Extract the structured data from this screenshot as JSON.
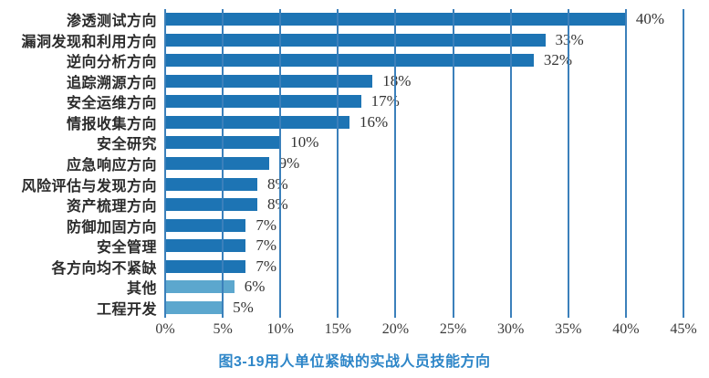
{
  "chart_data": {
    "type": "bar",
    "orientation": "horizontal",
    "title": "图3-19用人单位紧缺的实战人员技能方向",
    "categories": [
      "渗透测试方向",
      "漏洞发现和利用方向",
      "逆向分析方向",
      "追踪溯源方向",
      "安全运维方向",
      "情报收集方向",
      "安全研究",
      "应急响应方向",
      "风险评估与发现方向",
      "资产梳理方向",
      "防御加固方向",
      "安全管理",
      "各方向均不紧缺",
      "其他",
      "工程开发"
    ],
    "values": [
      40,
      33,
      32,
      18,
      17,
      16,
      10,
      9,
      8,
      8,
      7,
      7,
      7,
      6,
      5
    ],
    "value_labels": [
      "40%",
      "33%",
      "32%",
      "18%",
      "17%",
      "16%",
      "10%",
      "9%",
      "8%",
      "8%",
      "7%",
      "7%",
      "7%",
      "6%",
      "5%"
    ],
    "xlabel": "",
    "ylabel": "",
    "xlim": [
      0,
      45
    ],
    "xticks": [
      0,
      5,
      10,
      15,
      20,
      25,
      30,
      35,
      40,
      45
    ],
    "xtick_labels": [
      "0%",
      "5%",
      "10%",
      "15%",
      "20%",
      "25%",
      "30%",
      "35%",
      "40%",
      "45%"
    ],
    "grid": true,
    "legend_position": "none",
    "bar_colors": [
      "#1D74B4",
      "#1D74B4",
      "#1D74B4",
      "#1D74B4",
      "#1D74B4",
      "#1D74B4",
      "#1D74B4",
      "#1D74B4",
      "#1D74B4",
      "#1D74B4",
      "#1D74B4",
      "#1D74B4",
      "#1D74B4",
      "#5CA7CE",
      "#5CA7CE"
    ],
    "colors": {
      "bar_default": "#1D74B4",
      "bar_light": "#5CA7CE",
      "gridline": "#3B80BB",
      "axis_text": "#3A3A3A",
      "category_text": "#2B2B2B",
      "value_text": "#333333",
      "title": "#2E86C8",
      "background": "#FFFFFF"
    }
  }
}
